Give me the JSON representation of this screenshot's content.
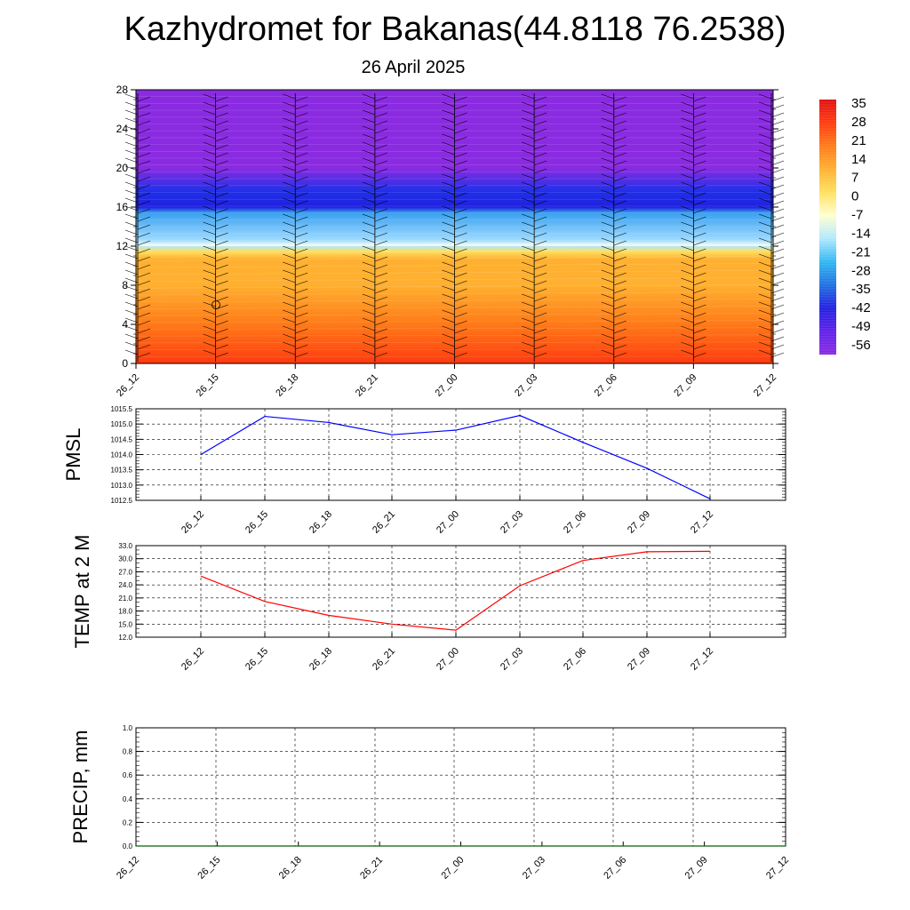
{
  "title": "Kazhydromet for Bakanas(44.8118 76.2538)",
  "subtitle": "26 April 2025",
  "time_labels": [
    "26_12",
    "26_15",
    "26_18",
    "26_21",
    "27_00",
    "27_03",
    "27_06",
    "27_09",
    "27_12"
  ],
  "colors": {
    "pmsl_line": "#0000ff",
    "temp_line": "#ff0000",
    "precip_line": "#006400",
    "grid": "#000000",
    "colorbar": [
      "#e01010",
      "#ff3a10",
      "#ff7a18",
      "#ffb030",
      "#ffe060",
      "#ffffd0",
      "#b0e8ff",
      "#30b8f0",
      "#2070e0",
      "#2020e0",
      "#6020e8",
      "#8a2be2"
    ]
  },
  "chart_data": [
    {
      "type": "heatmap",
      "id": "cross_section",
      "description_of_field": "temperature cross-section with wind barbs",
      "x": [
        "26_12",
        "26_15",
        "26_18",
        "26_21",
        "27_00",
        "27_03",
        "27_06",
        "27_09",
        "27_12"
      ],
      "ylim": [
        0,
        28
      ],
      "yticks": [
        0,
        4,
        8,
        12,
        16,
        20,
        24,
        28
      ],
      "colorbar_ticks": [
        35,
        28,
        21,
        14,
        7,
        0,
        -7,
        -14,
        -21,
        -28,
        -35,
        -42,
        -49,
        -56
      ],
      "profile_levels": [
        0,
        4,
        8,
        12,
        16,
        20,
        24,
        28
      ],
      "profile_values": [
        30,
        22,
        10,
        -14,
        -42,
        -58,
        -54,
        -52
      ],
      "grid": false
    },
    {
      "type": "line",
      "id": "pmsl",
      "ylabel": "PMSL",
      "x": [
        "26_12",
        "26_15",
        "26_18",
        "26_21",
        "27_00",
        "27_03",
        "27_06",
        "27_09",
        "27_12"
      ],
      "ylim": [
        1012.5,
        1015.5
      ],
      "yticks": [
        1012.5,
        1013.0,
        1013.5,
        1014.0,
        1014.5,
        1015.0,
        1015.5
      ],
      "series": [
        {
          "values": [
            1014.0,
            1015.25,
            1015.05,
            1014.65,
            1014.8,
            1015.28,
            1014.4,
            1013.55,
            1012.55
          ]
        }
      ],
      "grid": true
    },
    {
      "type": "line",
      "id": "temp2m",
      "ylabel": "TEMP at 2 M",
      "x": [
        "26_12",
        "26_15",
        "26_18",
        "26_21",
        "27_00",
        "27_03",
        "27_06",
        "27_09",
        "27_12"
      ],
      "ylim": [
        12.0,
        33.0
      ],
      "yticks": [
        12.0,
        15.0,
        18.0,
        21.0,
        24.0,
        27.0,
        30.0,
        33.0
      ],
      "series": [
        {
          "values": [
            26.0,
            20.2,
            17.0,
            15.0,
            13.6,
            23.8,
            29.6,
            31.6,
            31.7
          ]
        }
      ],
      "grid": true
    },
    {
      "type": "line",
      "id": "precip",
      "ylabel": "PRECIP, mm",
      "x": [
        "26_12",
        "26_15",
        "26_18",
        "26_21",
        "27_00",
        "27_03",
        "27_06",
        "27_09",
        "27_12"
      ],
      "ylim": [
        0.0,
        1.0
      ],
      "yticks": [
        0.0,
        0.2,
        0.4,
        0.6,
        0.8,
        1.0
      ],
      "series": [
        {
          "values": [
            0,
            0,
            0,
            0,
            0,
            0,
            0,
            0,
            0
          ]
        }
      ],
      "grid": true
    }
  ]
}
